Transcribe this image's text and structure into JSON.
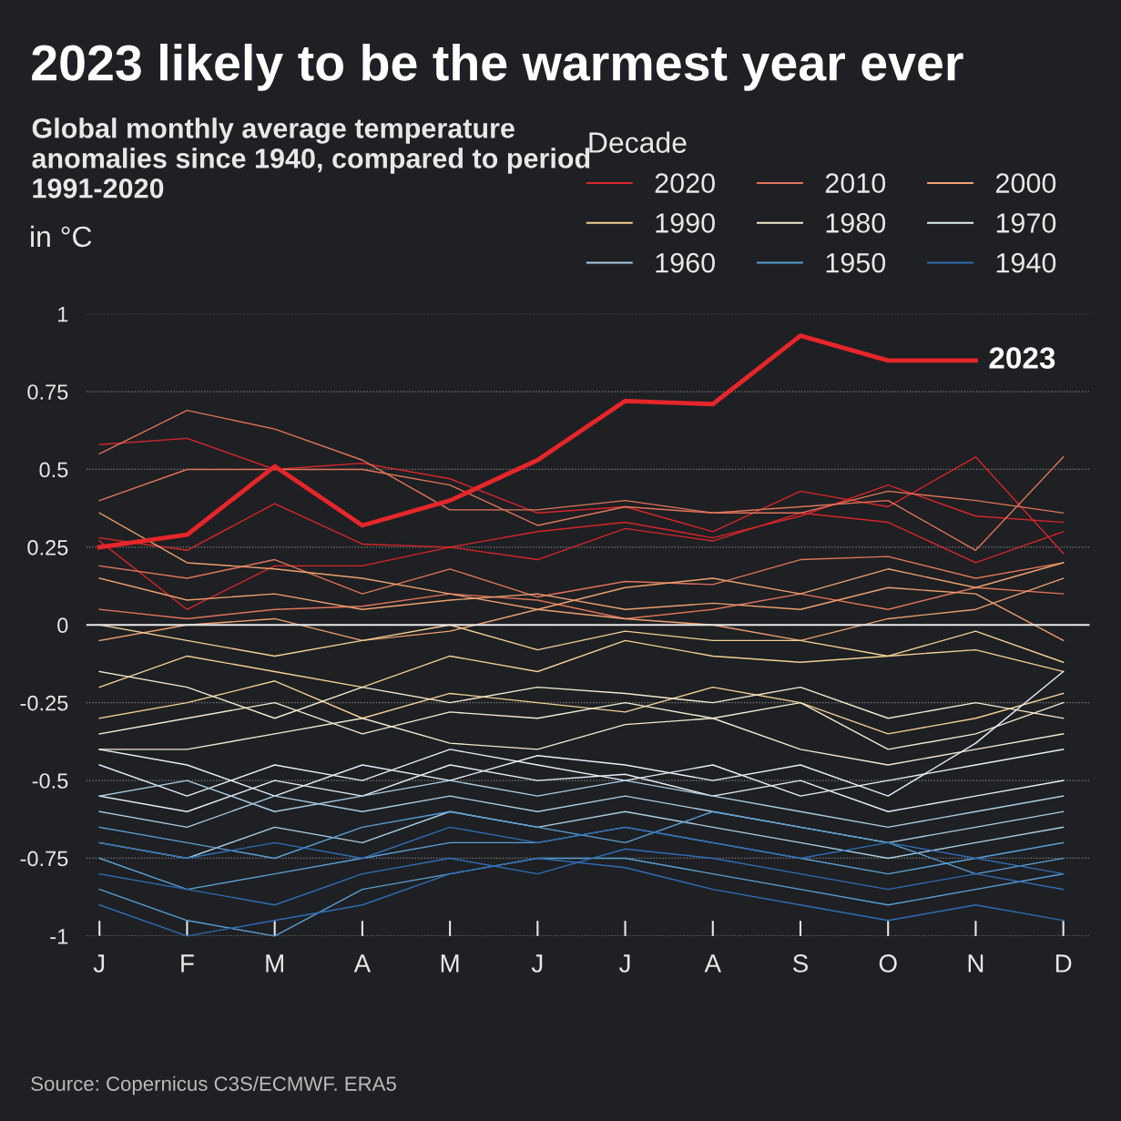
{
  "chart_data": {
    "type": "line",
    "title": "2023 likely to be the warmest year ever",
    "subtitle": "Global monthly average temperature anomalies since 1940, compared to period 1991-2020",
    "ylabel": "in °C",
    "legend_title": "Decade",
    "categories": [
      "J",
      "F",
      "M",
      "A",
      "M",
      "J",
      "J",
      "A",
      "S",
      "O",
      "N",
      "D"
    ],
    "ylim": [
      -1,
      1
    ],
    "yticks": [
      {
        "value": -1,
        "label": "-1"
      },
      {
        "value": -0.75,
        "label": "-0.75"
      },
      {
        "value": -0.5,
        "label": "-0.5"
      },
      {
        "value": -0.25,
        "label": "-0.25"
      },
      0,
      0.25,
      0.5,
      0.75,
      1
    ],
    "grid": "y",
    "legend": "top right",
    "line_style": "solid",
    "marker": "none",
    "ref_lines": [
      {
        "axis": "y",
        "value": 0,
        "label": null,
        "color": "#e8e8e8"
      }
    ],
    "annotations": [
      {
        "text": "2023",
        "x": "N",
        "y": 0.85
      },
      "Source: Copernicus C3S/ECMWF. ERA5"
    ],
    "series": [
      {
        "name": "2020",
        "color": "#d7262b",
        "values": [
          0.58,
          0.6,
          0.5,
          0.52,
          0.47,
          0.36,
          0.38,
          0.3,
          0.43,
          0.38,
          0.54,
          0.23
        ]
      },
      {
        "color": "#d7262b",
        "values": [
          0.27,
          0.05,
          0.19,
          0.19,
          0.25,
          0.21,
          0.31,
          0.27,
          0.36,
          0.33,
          0.2,
          0.3
        ]
      },
      {
        "color": "#d7262b",
        "values": [
          0.28,
          0.24,
          0.39,
          0.26,
          0.25,
          0.3,
          0.33,
          0.28,
          0.35,
          0.45,
          0.35,
          0.33
        ]
      },
      {
        "name": "2010",
        "color": "#e0745a",
        "values": [
          0.55,
          0.69,
          0.63,
          0.53,
          0.37,
          0.37,
          0.4,
          0.36,
          0.36,
          0.43,
          0.4,
          0.36
        ]
      },
      {
        "color": "#e0745a",
        "values": [
          0.4,
          0.5,
          0.5,
          0.5,
          0.45,
          0.32,
          0.38,
          0.36,
          0.38,
          0.4,
          0.24,
          0.54
        ]
      },
      {
        "color": "#e0745a",
        "values": [
          0.19,
          0.15,
          0.21,
          0.1,
          0.18,
          0.09,
          0.14,
          0.13,
          0.21,
          0.22,
          0.15,
          0.2
        ]
      },
      {
        "color": "#e0745a",
        "values": [
          0.05,
          0.02,
          0.05,
          0.06,
          0.1,
          0.08,
          0.02,
          0.05,
          0.1,
          0.05,
          0.12,
          0.1
        ]
      },
      {
        "name": "2000",
        "color": "#eda070",
        "values": [
          0.15,
          0.08,
          0.1,
          0.05,
          0.08,
          0.1,
          0.05,
          0.07,
          0.05,
          0.12,
          0.1,
          -0.05
        ]
      },
      {
        "color": "#eda070",
        "values": [
          -0.05,
          0.0,
          0.02,
          -0.05,
          -0.02,
          0.05,
          0.02,
          0.0,
          -0.05,
          0.02,
          0.05,
          0.15
        ]
      },
      {
        "color": "#eda070",
        "values": [
          0.36,
          0.2,
          0.18,
          0.15,
          0.1,
          0.05,
          0.12,
          0.15,
          0.1,
          0.18,
          0.12,
          0.2
        ]
      },
      {
        "name": "1990",
        "color": "#f3cf95",
        "values": [
          -0.2,
          -0.1,
          -0.15,
          -0.2,
          -0.1,
          -0.15,
          -0.05,
          -0.1,
          -0.12,
          -0.1,
          -0.08,
          -0.15
        ]
      },
      {
        "color": "#f3cf95",
        "values": [
          -0.3,
          -0.25,
          -0.18,
          -0.3,
          -0.22,
          -0.25,
          -0.28,
          -0.2,
          -0.25,
          -0.35,
          -0.3,
          -0.22
        ]
      },
      {
        "color": "#f3cf95",
        "values": [
          0.0,
          -0.05,
          -0.1,
          -0.05,
          0.0,
          -0.08,
          -0.02,
          -0.05,
          -0.05,
          -0.1,
          -0.02,
          -0.12
        ]
      },
      {
        "name": "1980",
        "color": "#f2e9cf",
        "values": [
          -0.35,
          -0.3,
          -0.25,
          -0.35,
          -0.28,
          -0.3,
          -0.25,
          -0.3,
          -0.25,
          -0.4,
          -0.35,
          -0.25
        ]
      },
      {
        "color": "#f2e9cf",
        "values": [
          -0.4,
          -0.4,
          -0.35,
          -0.3,
          -0.38,
          -0.4,
          -0.32,
          -0.3,
          -0.4,
          -0.45,
          -0.4,
          -0.35
        ]
      },
      {
        "color": "#f2e9cf",
        "values": [
          -0.15,
          -0.2,
          -0.3,
          -0.2,
          -0.25,
          -0.2,
          -0.22,
          -0.25,
          -0.2,
          -0.3,
          -0.25,
          -0.3
        ]
      },
      {
        "name": "1970",
        "color": "#e6eef7",
        "values": [
          -0.45,
          -0.55,
          -0.45,
          -0.5,
          -0.4,
          -0.45,
          -0.5,
          -0.45,
          -0.55,
          -0.5,
          -0.45,
          -0.4
        ]
      },
      {
        "color": "#e6eef7",
        "values": [
          -0.55,
          -0.6,
          -0.5,
          -0.55,
          -0.45,
          -0.5,
          -0.48,
          -0.55,
          -0.5,
          -0.6,
          -0.55,
          -0.5
        ]
      },
      {
        "color": "#e6eef7",
        "values": [
          -0.4,
          -0.45,
          -0.55,
          -0.45,
          -0.5,
          -0.42,
          -0.45,
          -0.5,
          -0.45,
          -0.55,
          -0.38,
          -0.15
        ]
      },
      {
        "name": "1960",
        "color": "#a9cde6",
        "values": [
          -0.6,
          -0.65,
          -0.55,
          -0.6,
          -0.55,
          -0.6,
          -0.55,
          -0.6,
          -0.65,
          -0.7,
          -0.65,
          -0.6
        ]
      },
      {
        "color": "#a9cde6",
        "values": [
          -0.7,
          -0.75,
          -0.65,
          -0.7,
          -0.6,
          -0.65,
          -0.6,
          -0.65,
          -0.7,
          -0.75,
          -0.7,
          -0.65
        ]
      },
      {
        "color": "#a9cde6",
        "values": [
          -0.55,
          -0.5,
          -0.6,
          -0.55,
          -0.5,
          -0.55,
          -0.5,
          -0.55,
          -0.6,
          -0.65,
          -0.6,
          -0.55
        ]
      },
      {
        "name": "1950",
        "color": "#5a9fd4",
        "values": [
          -0.75,
          -0.85,
          -0.8,
          -0.75,
          -0.7,
          -0.7,
          -0.65,
          -0.7,
          -0.75,
          -0.8,
          -0.75,
          -0.7
        ]
      },
      {
        "color": "#5a9fd4",
        "values": [
          -0.65,
          -0.7,
          -0.75,
          -0.65,
          -0.6,
          -0.65,
          -0.7,
          -0.6,
          -0.65,
          -0.7,
          -0.8,
          -0.75
        ]
      },
      {
        "color": "#5a9fd4",
        "values": [
          -0.85,
          -0.95,
          -1.0,
          -0.85,
          -0.8,
          -0.75,
          -0.75,
          -0.8,
          -0.85,
          -0.9,
          -0.85,
          -0.8
        ]
      },
      {
        "name": "1940",
        "color": "#2f6db3",
        "values": [
          -0.9,
          -1.0,
          -0.95,
          -0.9,
          -0.8,
          -0.75,
          -0.78,
          -0.85,
          -0.9,
          -0.95,
          -0.9,
          -0.95
        ]
      },
      {
        "color": "#2f6db3",
        "values": [
          -0.8,
          -0.85,
          -0.9,
          -0.8,
          -0.75,
          -0.8,
          -0.72,
          -0.75,
          -0.8,
          -0.85,
          -0.8,
          -0.85
        ]
      },
      {
        "color": "#2f6db3",
        "values": [
          -0.7,
          -0.75,
          -0.7,
          -0.75,
          -0.65,
          -0.7,
          -0.65,
          -0.7,
          -0.75,
          -0.7,
          -0.75,
          -0.8
        ]
      },
      {
        "color": "#e5262a",
        "values": [
          0.25,
          0.29,
          0.51,
          0.32,
          0.4,
          0.53,
          0.72,
          0.71,
          0.93,
          0.85,
          0.85,
          null
        ]
      }
    ]
  }
}
